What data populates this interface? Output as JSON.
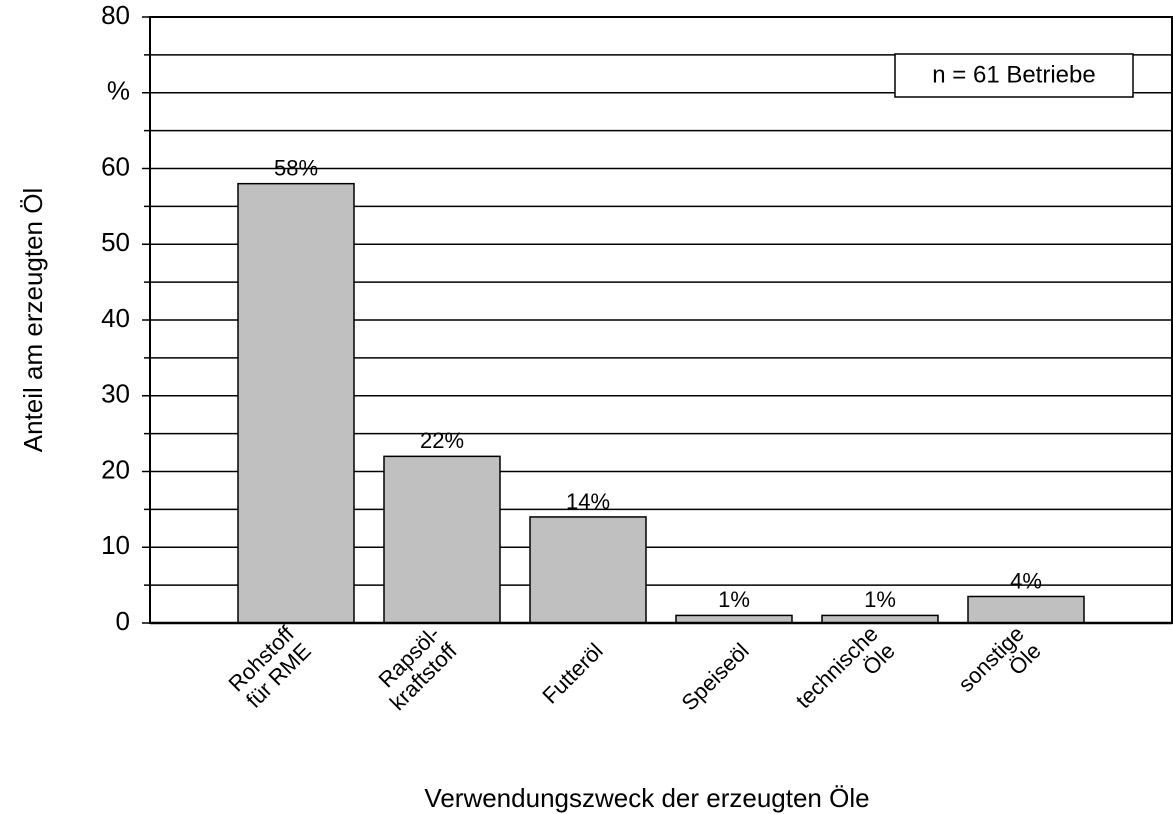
{
  "chart_data": {
    "type": "bar",
    "xlabel": "Verwendungszweck der erzeugten Öle",
    "ylabel": "Anteil am erzeugten Öl",
    "annotation": "n = 61 Betriebe",
    "categories": [
      "Rohstoff\nfür RME",
      "Rapsöl-\nkraftstoff",
      "Futteröl",
      "Speiseöl",
      "technische\nÖle",
      "sonstige\nÖle"
    ],
    "values": [
      58,
      22,
      14,
      1,
      1,
      3.5
    ],
    "value_labels": [
      "58%",
      "22%",
      "14%",
      "1%",
      "1%",
      "4%"
    ],
    "color": "#c0c0c0",
    "ylim": [
      0,
      80
    ],
    "yticks": [
      0,
      10,
      20,
      30,
      40,
      50,
      60,
      {
        "value": 70,
        "label": "%"
      },
      80
    ],
    "minor_yticks": [
      5,
      15,
      25,
      35,
      45,
      55,
      65,
      75
    ],
    "grid": true
  }
}
